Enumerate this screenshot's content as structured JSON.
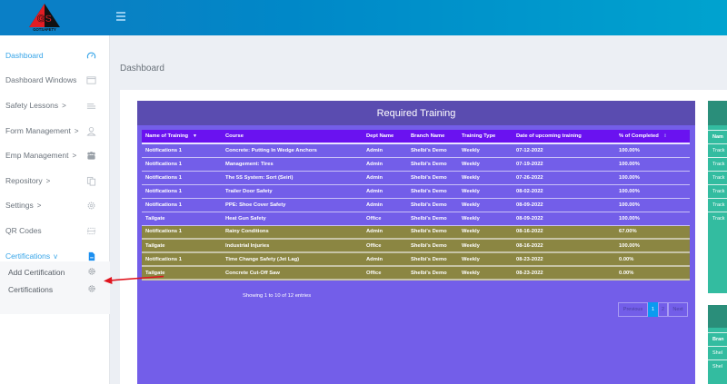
{
  "header": {
    "logo_text": "GS",
    "logo_subtext": "GOTSAFETY",
    "menu_icon": "hamburger-icon"
  },
  "sidebar": {
    "items": [
      {
        "label": "Dashboard",
        "icon": "speedometer-icon",
        "active": true,
        "chevron": ""
      },
      {
        "label": "Dashboard Windows",
        "icon": "window-icon",
        "active": false,
        "chevron": ""
      },
      {
        "label": "Safety Lessons",
        "icon": "list-icon",
        "active": false,
        "chevron": ">"
      },
      {
        "label": "Form Management",
        "icon": "user-icon",
        "active": false,
        "chevron": ">"
      },
      {
        "label": "Emp Management",
        "icon": "users-icon",
        "active": false,
        "chevron": ">"
      },
      {
        "label": "Repository",
        "icon": "copy-icon",
        "active": false,
        "chevron": ">"
      },
      {
        "label": "Settings",
        "icon": "gear-icon",
        "active": false,
        "chevron": ">"
      },
      {
        "label": "QR Codes",
        "icon": "qr-icon",
        "active": false,
        "chevron": ""
      },
      {
        "label": "Certifications",
        "icon": "document-icon",
        "active": true,
        "chevron": "v"
      }
    ],
    "sub_items": [
      {
        "label": "Add Certification",
        "icon": "gear-icon"
      },
      {
        "label": "Certifications",
        "icon": "gear-icon"
      }
    ]
  },
  "page": {
    "title": "Dashboard"
  },
  "required_training": {
    "title": "Required Training",
    "columns": [
      "Name of Training",
      "Course",
      "Dept Name",
      "Branch Name",
      "Training Type",
      "Date of upcoming training",
      "% of Completed"
    ],
    "rows": [
      {
        "name": "Notifications 1",
        "course": "Concrete: Putting In Wedge Anchors",
        "dept": "Admin",
        "branch": "Shelbi's Demo",
        "type": "Weekly",
        "date": "07-12-2022",
        "pct": "100.00%",
        "highlight": false
      },
      {
        "name": "Notifications 1",
        "course": "Management: Tires",
        "dept": "Admin",
        "branch": "Shelbi's Demo",
        "type": "Weekly",
        "date": "07-19-2022",
        "pct": "100.00%",
        "highlight": false
      },
      {
        "name": "Notifications 1",
        "course": "The 5S System: Sort (Seiri)",
        "dept": "Admin",
        "branch": "Shelbi's Demo",
        "type": "Weekly",
        "date": "07-26-2022",
        "pct": "100.00%",
        "highlight": false
      },
      {
        "name": "Notifications 1",
        "course": "Trailer Door Safety",
        "dept": "Admin",
        "branch": "Shelbi's Demo",
        "type": "Weekly",
        "date": "08-02-2022",
        "pct": "100.00%",
        "highlight": false
      },
      {
        "name": "Notifications 1",
        "course": "PPE: Shoe Cover Safety",
        "dept": "Admin",
        "branch": "Shelbi's Demo",
        "type": "Weekly",
        "date": "08-09-2022",
        "pct": "100.00%",
        "highlight": false
      },
      {
        "name": "Tailgate",
        "course": "Heat Gun Safety",
        "dept": "Office",
        "branch": "Shelbi's Demo",
        "type": "Weekly",
        "date": "08-09-2022",
        "pct": "100.00%",
        "highlight": false
      },
      {
        "name": "Notifications 1",
        "course": "Rainy Conditions",
        "dept": "Admin",
        "branch": "Shelbi's Demo",
        "type": "Weekly",
        "date": "08-16-2022",
        "pct": "67.00%",
        "highlight": true
      },
      {
        "name": "Tailgate",
        "course": "Industrial Injuries",
        "dept": "Office",
        "branch": "Shelbi's Demo",
        "type": "Weekly",
        "date": "08-16-2022",
        "pct": "100.00%",
        "highlight": true
      },
      {
        "name": "Notifications 1",
        "course": "Time Change Safety (Jet Lag)",
        "dept": "Admin",
        "branch": "Shelbi's Demo",
        "type": "Weekly",
        "date": "08-23-2022",
        "pct": "0.00%",
        "highlight": true
      },
      {
        "name": "Tailgate",
        "course": "Concrete Cut-Off Saw",
        "dept": "Office",
        "branch": "Shelbi's Demo",
        "type": "Weekly",
        "date": "08-23-2022",
        "pct": "0.00%",
        "highlight": true
      }
    ],
    "entries_info": "Showing 1 to 10 of 12 entries",
    "pagination": {
      "previous": "Previous",
      "pages": [
        "1",
        "2"
      ],
      "active_page": "1",
      "next": "Next"
    }
  },
  "right_panel_1": {
    "header_partial": "Nam",
    "rows": [
      "Track",
      "Track",
      "Track",
      "Track",
      "Track",
      "Track"
    ]
  },
  "right_panel_2": {
    "header_partial": "Bran",
    "rows": [
      "Shel",
      "Shel"
    ]
  },
  "colors": {
    "topbar": "#0088c8",
    "sidebar_active": "#35a4e8",
    "panel_purple": "#735ee9",
    "panel_header": "#5a4cb0",
    "table_header": "#6a12f0",
    "highlight_row": "#8b8642",
    "teal": "#33bca0",
    "pager_active": "#0a9bf0"
  }
}
